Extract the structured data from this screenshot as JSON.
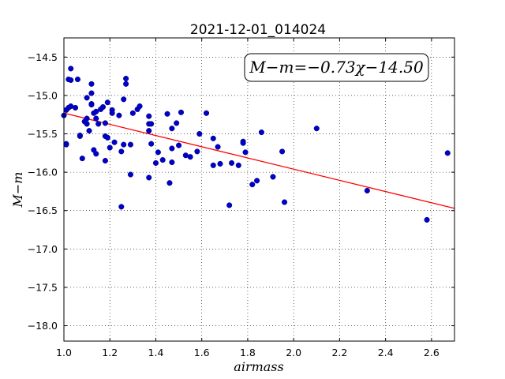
{
  "chart_data": {
    "type": "scatter",
    "title": "2021-12-01_014024",
    "xlabel": "airmass",
    "ylabel": "M−m",
    "xlim": [
      1.0,
      2.7
    ],
    "ylim": [
      -18.2,
      -14.25
    ],
    "y_inverted": true,
    "grid": true,
    "xticks": [
      "1.0",
      "1.2",
      "1.4",
      "1.6",
      "1.8",
      "2.0",
      "2.2",
      "2.4",
      "2.6"
    ],
    "xtick_values": [
      1.0,
      1.2,
      1.4,
      1.6,
      1.8,
      2.0,
      2.2,
      2.4,
      2.6
    ],
    "yticks": [
      "−14.5",
      "−15.0",
      "−15.5",
      "−16.0",
      "−16.5",
      "−17.0",
      "−17.5",
      "−18.0"
    ],
    "ytick_values": [
      -14.5,
      -15.0,
      -15.5,
      -16.0,
      -16.5,
      -17.0,
      -17.5,
      -18.0
    ],
    "annotation": "M−m=−0.73χ−14.50",
    "fit": {
      "slope": -0.73,
      "intercept": -14.5,
      "color": "#ff0000"
    },
    "points_color": "#0000cc",
    "points": [
      [
        1.0,
        -15.26
      ],
      [
        1.01,
        -15.19
      ],
      [
        1.01,
        -15.63
      ],
      [
        1.01,
        -15.64
      ],
      [
        1.02,
        -14.79
      ],
      [
        1.02,
        -15.16
      ],
      [
        1.03,
        -14.65
      ],
      [
        1.03,
        -14.8
      ],
      [
        1.03,
        -15.14
      ],
      [
        1.05,
        -15.16
      ],
      [
        1.06,
        -14.79
      ],
      [
        1.07,
        -15.53
      ],
      [
        1.07,
        -15.52
      ],
      [
        1.08,
        -15.82
      ],
      [
        1.09,
        -15.34
      ],
      [
        1.1,
        -15.3
      ],
      [
        1.1,
        -15.03
      ],
      [
        1.1,
        -15.37
      ],
      [
        1.11,
        -15.46
      ],
      [
        1.12,
        -14.85
      ],
      [
        1.12,
        -14.97
      ],
      [
        1.12,
        -15.11
      ],
      [
        1.12,
        -15.12
      ],
      [
        1.13,
        -15.71
      ],
      [
        1.13,
        -15.23
      ],
      [
        1.14,
        -15.21
      ],
      [
        1.14,
        -15.3
      ],
      [
        1.14,
        -15.76
      ],
      [
        1.15,
        -15.37
      ],
      [
        1.16,
        -15.18
      ],
      [
        1.17,
        -15.15
      ],
      [
        1.18,
        -15.53
      ],
      [
        1.18,
        -15.85
      ],
      [
        1.18,
        -15.36
      ],
      [
        1.19,
        -15.09
      ],
      [
        1.19,
        -15.55
      ],
      [
        1.2,
        -15.68
      ],
      [
        1.21,
        -15.19
      ],
      [
        1.21,
        -15.23
      ],
      [
        1.22,
        -15.61
      ],
      [
        1.24,
        -15.26
      ],
      [
        1.25,
        -15.73
      ],
      [
        1.25,
        -16.45
      ],
      [
        1.26,
        -15.05
      ],
      [
        1.26,
        -15.64
      ],
      [
        1.27,
        -14.78
      ],
      [
        1.27,
        -14.85
      ],
      [
        1.29,
        -15.64
      ],
      [
        1.29,
        -16.03
      ],
      [
        1.3,
        -15.23
      ],
      [
        1.32,
        -15.18
      ],
      [
        1.33,
        -15.14
      ],
      [
        1.37,
        -15.27
      ],
      [
        1.37,
        -15.37
      ],
      [
        1.37,
        -15.46
      ],
      [
        1.37,
        -16.07
      ],
      [
        1.38,
        -15.37
      ],
      [
        1.38,
        -15.63
      ],
      [
        1.4,
        -15.88
      ],
      [
        1.41,
        -15.74
      ],
      [
        1.43,
        -15.84
      ],
      [
        1.45,
        -15.24
      ],
      [
        1.46,
        -16.14
      ],
      [
        1.47,
        -15.43
      ],
      [
        1.47,
        -15.69
      ],
      [
        1.47,
        -15.87
      ],
      [
        1.49,
        -15.36
      ],
      [
        1.5,
        -15.65
      ],
      [
        1.51,
        -15.22
      ],
      [
        1.53,
        -15.78
      ],
      [
        1.55,
        -15.8
      ],
      [
        1.58,
        -15.73
      ],
      [
        1.59,
        -15.5
      ],
      [
        1.62,
        -15.23
      ],
      [
        1.65,
        -15.56
      ],
      [
        1.65,
        -15.91
      ],
      [
        1.67,
        -15.67
      ],
      [
        1.68,
        -15.89
      ],
      [
        1.72,
        -16.43
      ],
      [
        1.73,
        -15.88
      ],
      [
        1.76,
        -15.91
      ],
      [
        1.78,
        -15.6
      ],
      [
        1.78,
        -15.62
      ],
      [
        1.79,
        -15.74
      ],
      [
        1.82,
        -16.16
      ],
      [
        1.84,
        -16.11
      ],
      [
        1.86,
        -15.48
      ],
      [
        1.91,
        -16.06
      ],
      [
        1.95,
        -15.73
      ],
      [
        1.96,
        -16.39
      ],
      [
        2.1,
        -15.43
      ],
      [
        2.32,
        -16.24
      ],
      [
        2.58,
        -16.62
      ],
      [
        2.67,
        -15.75
      ]
    ]
  }
}
